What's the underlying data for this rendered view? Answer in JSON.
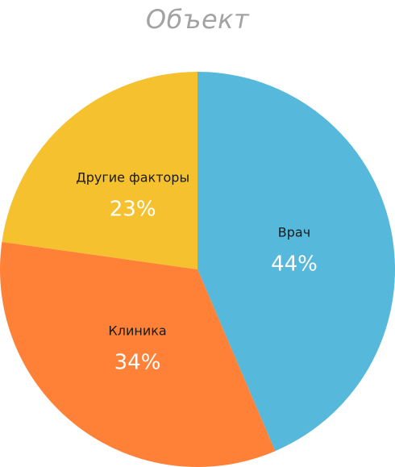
{
  "chart_data": {
    "type": "pie",
    "title": "Объект",
    "slices": [
      {
        "name": "Врач",
        "value": 44,
        "label": "44%",
        "color": "#56b8da"
      },
      {
        "name": "Клиника",
        "value": 34,
        "label": "34%",
        "color": "#fe8137"
      },
      {
        "name": "Другие факторы",
        "value": 23,
        "label": "23%",
        "color": "#f5c12e"
      }
    ],
    "legend": "none"
  }
}
